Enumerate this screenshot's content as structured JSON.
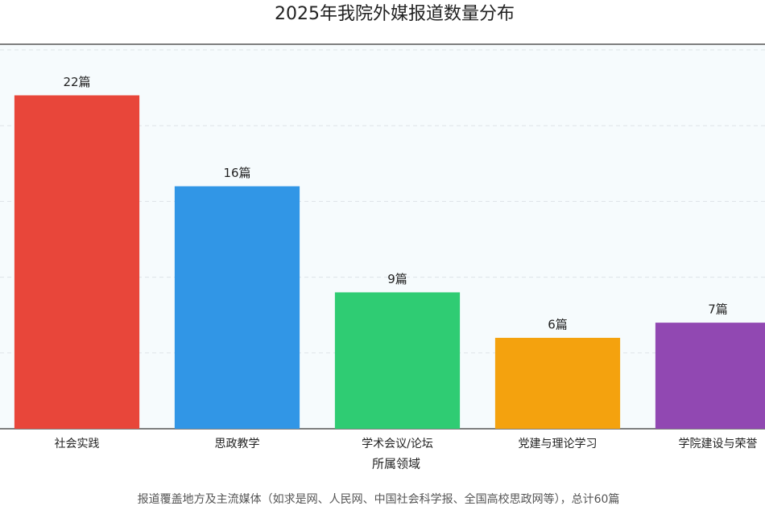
{
  "chart_data": {
    "type": "bar",
    "title": "2025年我院外媒报道数量分布",
    "categories": [
      "社会实践",
      "思政教学",
      "学术会议/论坛",
      "党建与理论学习",
      "学院建设与荣誉"
    ],
    "values": [
      22,
      16,
      9,
      6,
      7
    ],
    "value_labels": [
      "22篇",
      "16篇",
      "9篇",
      "6篇",
      "7篇"
    ],
    "colors": [
      "#e8463a",
      "#3196e6",
      "#2fcc73",
      "#f4a20e",
      "#9148b2"
    ],
    "x_label": "所属领域",
    "footnote": "报道覆盖地方及主流媒体（如求是网、人民网、中国社会科学报、全国高校思政网等），总计60篇",
    "ylim": [
      0,
      25
    ],
    "yticks": [
      0,
      5,
      10,
      15,
      20,
      25
    ],
    "grid": true
  }
}
